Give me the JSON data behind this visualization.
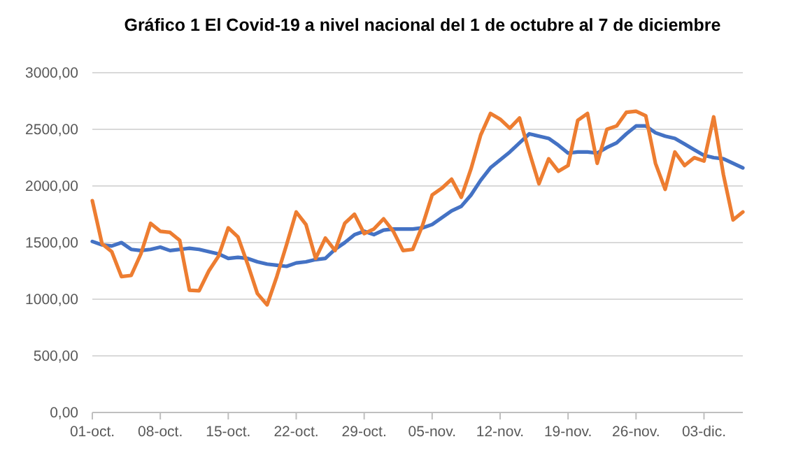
{
  "chart_data": {
    "type": "line",
    "title": "Gráfico 1 El Covid-19 a nivel nacional del 1 de octubre al 7 de diciembre",
    "categories": [
      "01-oct.",
      null,
      null,
      null,
      null,
      null,
      null,
      "08-oct.",
      null,
      null,
      null,
      null,
      null,
      null,
      "15-oct.",
      null,
      null,
      null,
      null,
      null,
      null,
      "22-oct.",
      null,
      null,
      null,
      null,
      null,
      null,
      "29-oct.",
      null,
      null,
      null,
      null,
      null,
      null,
      "05-nov.",
      null,
      null,
      null,
      null,
      null,
      null,
      "12-nov.",
      null,
      null,
      null,
      null,
      null,
      null,
      "19-nov.",
      null,
      null,
      null,
      null,
      null,
      null,
      "26-nov.",
      null,
      null,
      null,
      null,
      null,
      null,
      "03-dic.",
      null,
      null,
      null,
      null
    ],
    "series": [
      {
        "color": "#4472c4",
        "values": [
          1510,
          1480,
          1470,
          1500,
          1440,
          1430,
          1440,
          1460,
          1430,
          1440,
          1450,
          1440,
          1420,
          1400,
          1360,
          1370,
          1360,
          1330,
          1310,
          1300,
          1290,
          1320,
          1330,
          1350,
          1360,
          1440,
          1500,
          1570,
          1600,
          1570,
          1610,
          1620,
          1620,
          1620,
          1630,
          1660,
          1720,
          1780,
          1820,
          1920,
          2050,
          2160,
          2230,
          2300,
          2380,
          2460,
          2440,
          2420,
          2360,
          2290,
          2300,
          2300,
          2290,
          2340,
          2380,
          2460,
          2530,
          2530,
          2470,
          2440,
          2420,
          2370,
          2320,
          2270,
          2250,
          2240,
          2200,
          2160
        ]
      },
      {
        "color": "#ed7d31",
        "values": [
          1870,
          1490,
          1420,
          1200,
          1210,
          1400,
          1670,
          1600,
          1590,
          1520,
          1080,
          1075,
          1250,
          1380,
          1630,
          1550,
          1310,
          1050,
          950,
          1200,
          1480,
          1770,
          1660,
          1360,
          1540,
          1430,
          1670,
          1750,
          1580,
          1620,
          1710,
          1600,
          1430,
          1440,
          1650,
          1920,
          1980,
          2060,
          1900,
          2150,
          2450,
          2640,
          2590,
          2510,
          2600,
          2300,
          2020,
          2240,
          2130,
          2180,
          2580,
          2640,
          2200,
          2500,
          2530,
          2650,
          2660,
          2620,
          2200,
          1970,
          2300,
          2180,
          2250,
          2220,
          2610,
          2100,
          1700,
          1770
        ]
      }
    ],
    "ylim": [
      0,
      3000
    ],
    "yticks": [
      {
        "value": 0,
        "label": "0,00"
      },
      {
        "value": 500,
        "label": "500,00"
      },
      {
        "value": 1000,
        "label": "1000,00"
      },
      {
        "value": 1500,
        "label": "1500,00"
      },
      {
        "value": 2000,
        "label": "2000,00"
      },
      {
        "value": 2500,
        "label": "2500,00"
      },
      {
        "value": 3000,
        "label": "3000,00"
      }
    ],
    "grid": "y",
    "marker": "none",
    "line_style": "solid"
  }
}
